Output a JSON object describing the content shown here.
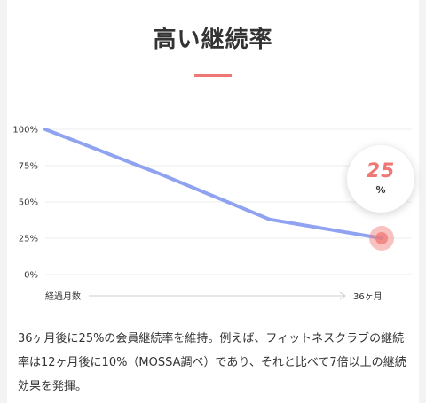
{
  "heading": "高い継続率",
  "chart_data": {
    "type": "line",
    "x": [
      0,
      12,
      24,
      36
    ],
    "xlabel": "経過月数",
    "x_end_label": "36ヶ月",
    "ylim": [
      0,
      100
    ],
    "yticks": [
      "100%",
      "75%",
      "50%",
      "25%",
      "0%"
    ],
    "ytick_values": [
      100,
      75,
      50,
      25,
      0
    ],
    "series": [
      {
        "values": [
          100,
          70,
          38,
          25
        ],
        "color": "#8fa3f0"
      }
    ],
    "highlight": {
      "value": "25",
      "unit": "%",
      "color": "#f07874"
    },
    "grid": true
  },
  "description": "36ヶ月後に25%の会員継続率を維持。例えば、フィットネスクラブの継続率は12ヶ月後に10%（MOSSA調べ）であり、それと比べて7倍以上の継続効果を発揮。"
}
